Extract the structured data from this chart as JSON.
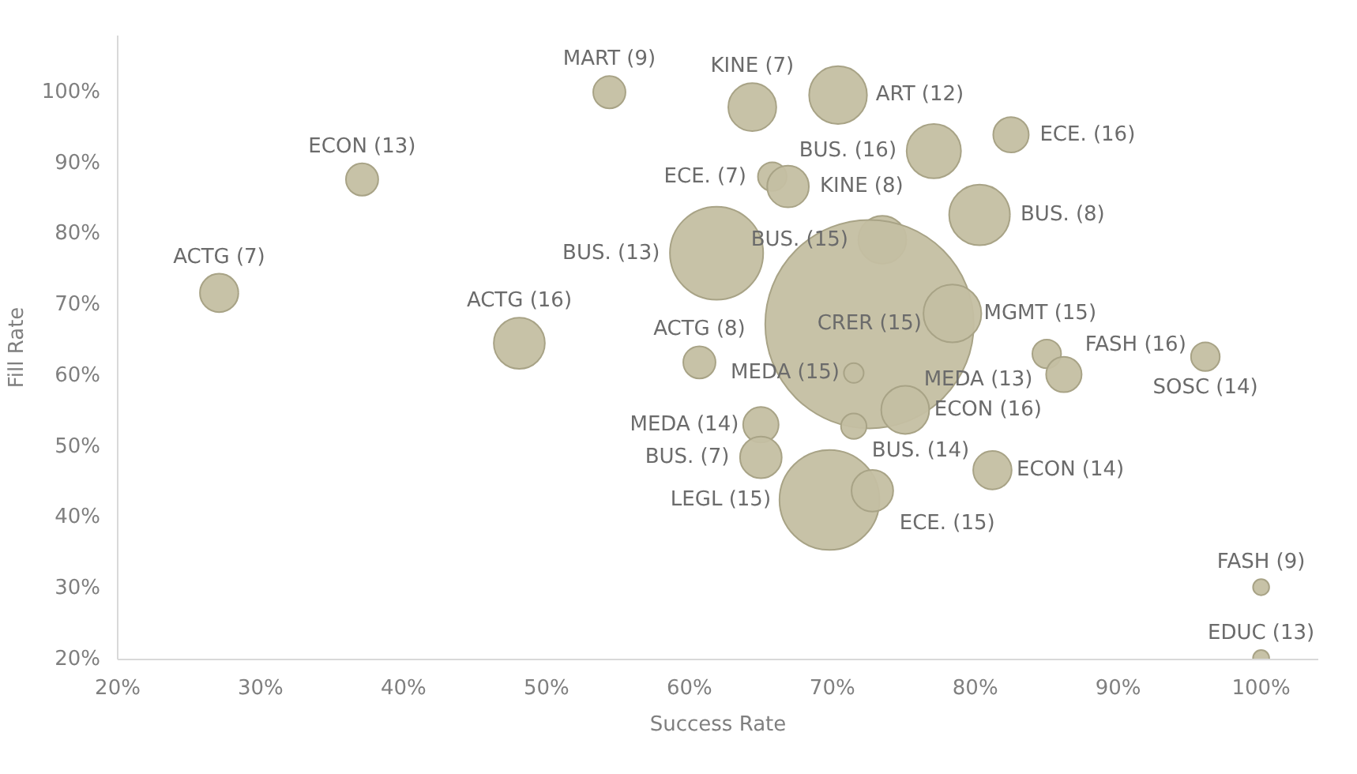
{
  "chart_data": {
    "type": "bubble",
    "xlabel": "Success Rate",
    "ylabel": "Fill Rate",
    "x": [
      54.4,
      64.4,
      70.4,
      77.1,
      82.5,
      65.8,
      66.9,
      80.3,
      73.5,
      61.9,
      72.6,
      78.4,
      60.7,
      71.5,
      75.1,
      65.0,
      71.5,
      65.0,
      69.8,
      72.8,
      81.2,
      85.0,
      86.2,
      96.1,
      100,
      100,
      37.1,
      27.1,
      48.1
    ],
    "series": [
      {
        "color": "#c4bfa2",
        "values": [
          100,
          97.9,
          99.6,
          91.7,
          94.0,
          88.1,
          86.7,
          82.7,
          79.2,
          77.3,
          67.3,
          68.8,
          61.9,
          60.4,
          55.2,
          53.1,
          52.9,
          48.5,
          42.5,
          43.8,
          46.7,
          63.1,
          60.2,
          62.7,
          30.2,
          20.2,
          87.7,
          71.7,
          64.6
        ],
        "sizes": [
          0.024,
          0.053,
          0.077,
          0.068,
          0.029,
          0.019,
          0.04,
          0.085,
          0.053,
          0.2,
          1,
          0.077,
          0.024,
          0.009,
          0.053,
          0.029,
          0.015,
          0.04,
          0.23,
          0.04,
          0.034,
          0.019,
          0.029,
          0.019,
          0.006,
          0.006,
          0.024,
          0.034,
          0.06
        ]
      }
    ],
    "annotations": [
      {
        "text": "MART (9)",
        "x": 54.4,
        "y": 100
      },
      {
        "text": "KINE (7)",
        "x": 64.4,
        "y": 97.9
      },
      {
        "text": "ART (12)",
        "x": 70.4,
        "y": 99.6
      },
      {
        "text": "BUS. (16)",
        "x": 77.1,
        "y": 91.7
      },
      {
        "text": "ECE. (16)",
        "x": 82.5,
        "y": 94.0
      },
      {
        "text": "ECE. (7)",
        "x": 65.8,
        "y": 88.1
      },
      {
        "text": "KINE (8)",
        "x": 66.9,
        "y": 86.7
      },
      {
        "text": "BUS. (8)",
        "x": 80.3,
        "y": 82.7
      },
      {
        "text": "BUS. (15)",
        "x": 73.5,
        "y": 79.2
      },
      {
        "text": "BUS. (13)",
        "x": 61.9,
        "y": 77.3
      },
      {
        "text": "CRER (15)",
        "x": 72.6,
        "y": 67.3
      },
      {
        "text": "MGMT (15)",
        "x": 78.4,
        "y": 68.8
      },
      {
        "text": "ACTG (8)",
        "x": 60.7,
        "y": 61.9
      },
      {
        "text": "MEDA (15)",
        "x": 71.5,
        "y": 60.4
      },
      {
        "text": "ECON (16)",
        "x": 75.1,
        "y": 55.2
      },
      {
        "text": "MEDA (14)",
        "x": 65.0,
        "y": 53.1
      },
      {
        "text": "BUS. (14)",
        "x": 71.5,
        "y": 52.9
      },
      {
        "text": "BUS. (7)",
        "x": 65.0,
        "y": 48.5
      },
      {
        "text": "LEGL (15)",
        "x": 69.8,
        "y": 42.5
      },
      {
        "text": "ECE. (15)",
        "x": 72.8,
        "y": 43.8
      },
      {
        "text": "ECON (14)",
        "x": 81.2,
        "y": 46.7
      },
      {
        "text": "MEDA (13)",
        "x": 85.0,
        "y": 63.1
      },
      {
        "text": "FASH (16)",
        "x": 86.2,
        "y": 60.2
      },
      {
        "text": "SOSC (14)",
        "x": 96.1,
        "y": 62.7
      },
      {
        "text": "FASH (9)",
        "x": 100,
        "y": 30.2
      },
      {
        "text": "EDUC (13)",
        "x": 100,
        "y": 20.2
      },
      {
        "text": "ECON (13)",
        "x": 37.1,
        "y": 87.7
      },
      {
        "text": "ACTG (7)",
        "x": 27.1,
        "y": 71.7
      },
      {
        "text": "ACTG (16)",
        "x": 48.1,
        "y": 64.6
      }
    ],
    "xlim": [
      20,
      104
    ],
    "ylim": [
      20,
      108
    ],
    "xticks": [
      {
        "value": 20,
        "label": "20%"
      },
      {
        "value": 30,
        "label": "30%"
      },
      {
        "value": 40,
        "label": "40%"
      },
      {
        "value": 50,
        "label": "50%"
      },
      {
        "value": 60,
        "label": "60%"
      },
      {
        "value": 70,
        "label": "70%"
      },
      {
        "value": 80,
        "label": "80%"
      },
      {
        "value": 90,
        "label": "90%"
      },
      {
        "value": 100,
        "label": "100%"
      }
    ],
    "yticks": [
      {
        "value": 20,
        "label": "20%"
      },
      {
        "value": 30,
        "label": "30%"
      },
      {
        "value": 40,
        "label": "40%"
      },
      {
        "value": 50,
        "label": "50%"
      },
      {
        "value": 60,
        "label": "60%"
      },
      {
        "value": 70,
        "label": "70%"
      },
      {
        "value": 80,
        "label": "80%"
      },
      {
        "value": 90,
        "label": "90%"
      },
      {
        "value": 100,
        "label": "100%"
      }
    ],
    "grid": false
  }
}
